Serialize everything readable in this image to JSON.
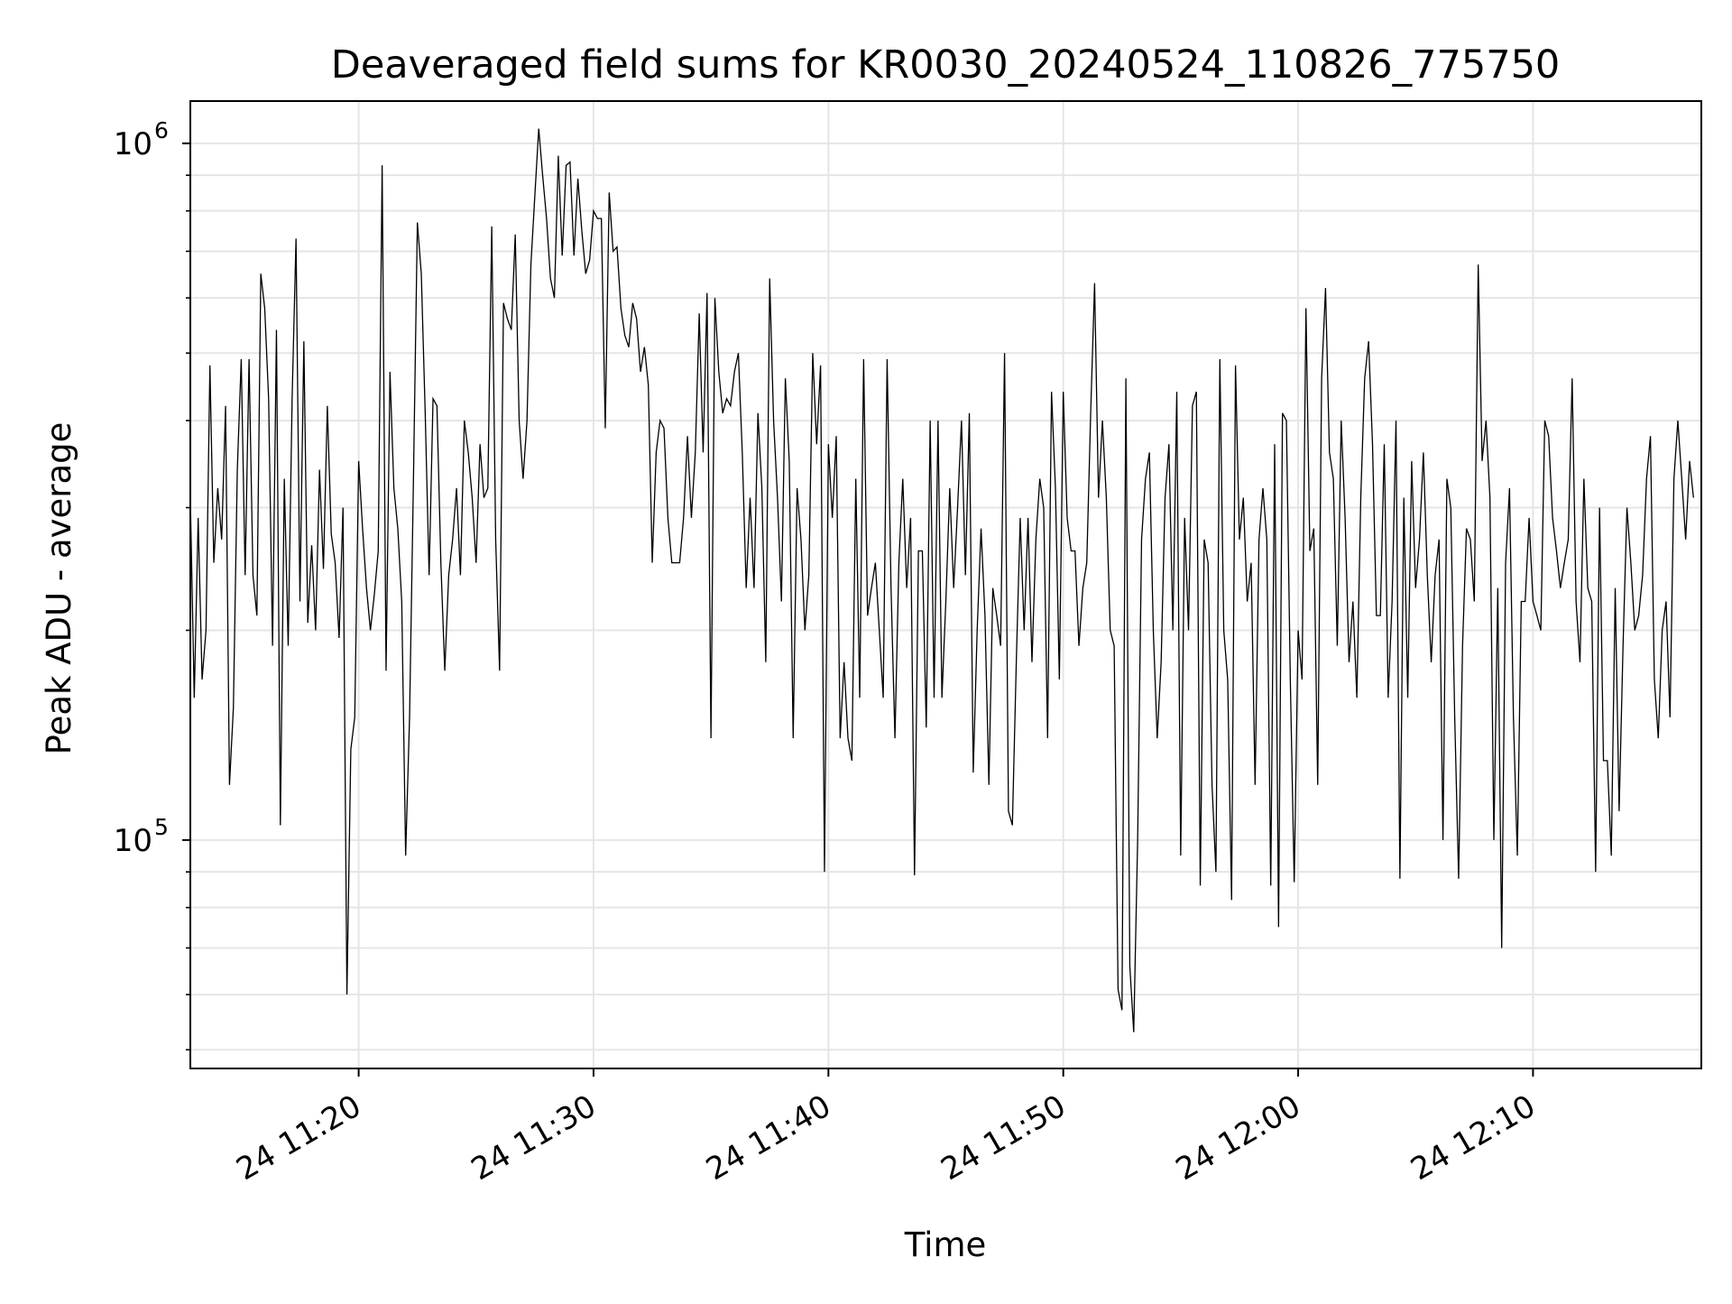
{
  "chart_data": {
    "type": "line",
    "title": "Deaveraged field sums for KR0030_20240524_110826_775750",
    "xlabel": "Time",
    "ylabel": "Peak ADU - average",
    "x_is_time": true,
    "xlim": [
      "2024-05-24 11:12:50",
      "2024-05-24 12:17:10"
    ],
    "ylim": [
      47000,
      1150000
    ],
    "yscale": "log",
    "grid": true,
    "line_color": "#000000",
    "grid_color": "#e5e5e5",
    "x_ticks": [
      {
        "value": "2024-05-24 11:20",
        "label": "24 11:20"
      },
      {
        "value": "2024-05-24 11:30",
        "label": "24 11:30"
      },
      {
        "value": "2024-05-24 11:40",
        "label": "24 11:40"
      },
      {
        "value": "2024-05-24 11:50",
        "label": "24 11:50"
      },
      {
        "value": "2024-05-24 12:00",
        "label": "24 12:00"
      },
      {
        "value": "2024-05-24 12:10",
        "label": "24 12:10"
      }
    ],
    "y_ticks": [
      {
        "value": 100000,
        "base": "10",
        "exp": "5"
      },
      {
        "value": 1000000,
        "base": "10",
        "exp": "6"
      }
    ],
    "series": [
      {
        "x_start": "2024-05-24 11:12:50",
        "x_step_seconds": 10,
        "values": [
          310000,
          160000,
          290000,
          170000,
          200000,
          480000,
          250000,
          320000,
          270000,
          420000,
          120000,
          155000,
          340000,
          490000,
          240000,
          490000,
          240000,
          210000,
          650000,
          580000,
          430000,
          190000,
          540000,
          105000,
          330000,
          190000,
          430000,
          730000,
          220000,
          520000,
          205000,
          265000,
          200000,
          340000,
          245000,
          420000,
          275000,
          250000,
          195000,
          300000,
          60000,
          135000,
          150000,
          350000,
          280000,
          230000,
          200000,
          225000,
          260000,
          930000,
          175000,
          470000,
          320000,
          280000,
          220000,
          95000,
          150000,
          330000,
          770000,
          650000,
          410000,
          240000,
          430000,
          420000,
          250000,
          175000,
          240000,
          270000,
          320000,
          240000,
          400000,
          360000,
          310000,
          250000,
          370000,
          310000,
          320000,
          760000,
          270000,
          175000,
          590000,
          560000,
          540000,
          740000,
          400000,
          330000,
          400000,
          670000,
          840000,
          1050000,
          900000,
          780000,
          640000,
          600000,
          960000,
          690000,
          930000,
          940000,
          690000,
          890000,
          750000,
          650000,
          680000,
          800000,
          780000,
          780000,
          390000,
          850000,
          700000,
          710000,
          580000,
          530000,
          510000,
          590000,
          560000,
          470000,
          510000,
          450000,
          250000,
          360000,
          400000,
          390000,
          290000,
          250000,
          250000,
          250000,
          290000,
          380000,
          290000,
          360000,
          570000,
          360000,
          610000,
          140000,
          600000,
          470000,
          410000,
          430000,
          420000,
          470000,
          500000,
          360000,
          230000,
          310000,
          230000,
          410000,
          320000,
          180000,
          640000,
          400000,
          310000,
          220000,
          460000,
          350000,
          140000,
          320000,
          270000,
          200000,
          240000,
          500000,
          370000,
          480000,
          90000,
          370000,
          290000,
          380000,
          140000,
          180000,
          140000,
          130000,
          330000,
          160000,
          490000,
          210000,
          230000,
          250000,
          200000,
          160000,
          490000,
          230000,
          140000,
          250000,
          330000,
          230000,
          290000,
          89000,
          260000,
          260000,
          145000,
          400000,
          160000,
          400000,
          160000,
          220000,
          320000,
          230000,
          300000,
          400000,
          240000,
          410000,
          125000,
          200000,
          280000,
          210000,
          120000,
          230000,
          210000,
          190000,
          500000,
          110000,
          105000,
          180000,
          290000,
          200000,
          290000,
          180000,
          270000,
          330000,
          300000,
          140000,
          440000,
          320000,
          170000,
          440000,
          290000,
          260000,
          260000,
          190000,
          230000,
          250000,
          410000,
          630000,
          310000,
          400000,
          310000,
          200000,
          190000,
          61000,
          57000,
          460000,
          66000,
          53000,
          100000,
          270000,
          330000,
          360000,
          200000,
          140000,
          180000,
          310000,
          370000,
          200000,
          440000,
          95000,
          290000,
          200000,
          420000,
          440000,
          86000,
          270000,
          250000,
          120000,
          90000,
          490000,
          200000,
          170000,
          82000,
          480000,
          270000,
          310000,
          220000,
          250000,
          120000,
          270000,
          320000,
          270000,
          86000,
          370000,
          75000,
          410000,
          400000,
          170000,
          87000,
          200000,
          170000,
          580000,
          260000,
          280000,
          120000,
          460000,
          620000,
          360000,
          330000,
          190000,
          400000,
          290000,
          180000,
          220000,
          160000,
          310000,
          460000,
          520000,
          370000,
          210000,
          210000,
          370000,
          160000,
          220000,
          400000,
          88000,
          310000,
          160000,
          350000,
          230000,
          270000,
          360000,
          240000,
          180000,
          240000,
          270000,
          100000,
          330000,
          300000,
          150000,
          88000,
          190000,
          280000,
          270000,
          220000,
          670000,
          350000,
          400000,
          310000,
          100000,
          230000,
          70000,
          250000,
          320000,
          150000,
          95000,
          220000,
          220000,
          290000,
          220000,
          210000,
          200000,
          400000,
          380000,
          290000,
          260000,
          230000,
          250000,
          270000,
          460000,
          220000,
          180000,
          330000,
          230000,
          220000,
          90000,
          300000,
          130000,
          130000,
          95000,
          230000,
          110000,
          190000,
          300000,
          250000,
          200000,
          210000,
          240000,
          330000,
          380000,
          170000,
          140000,
          200000,
          220000,
          150000,
          330000,
          400000,
          330000,
          270000,
          350000,
          310000
        ]
      }
    ]
  }
}
